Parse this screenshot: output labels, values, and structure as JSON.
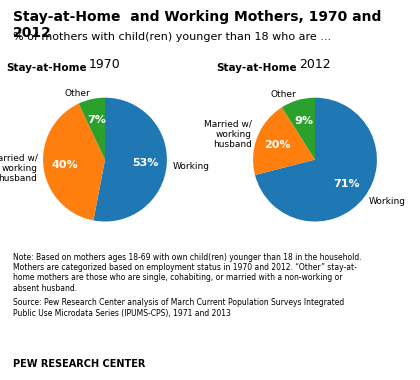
{
  "title": "Stay-at-Home  and Working Mothers, 1970 and 2012",
  "subtitle": "% of mothers with child(ren) younger than 18 who are ...",
  "note": "Note: Based on mothers ages 18-69 with own child(ren) younger than 18 in the household.\nMothers are categorized based on employment status in 1970 and 2012. “Other” stay-at-\nhome mothers are those who are single, cohabiting, or married with a non-working or\nabsent husband.",
  "source": "Source: Pew Research Center analysis of March Current Population Surveys Integrated\nPublic Use Microdata Series (IPUMS-CPS), 1971 and 2013",
  "footer": "PEW RESEARCH CENTER",
  "chart_data": [
    {
      "type": "pie",
      "title": "1970",
      "categories": [
        "Working",
        "Married w/\nworking\nhusband",
        "Other"
      ],
      "values": [
        53,
        40,
        7
      ],
      "value_labels": [
        "53%",
        "40%",
        "7%"
      ],
      "annotations": [
        "Stay-at-Home"
      ]
    },
    {
      "type": "pie",
      "title": "2012",
      "categories": [
        "Working",
        "Married w/\nworking\nhusband",
        "Other"
      ],
      "values": [
        71,
        20,
        9
      ],
      "value_labels": [
        "71%",
        "20%",
        "9%"
      ],
      "annotations": [
        "Stay-at-Home"
      ]
    }
  ]
}
